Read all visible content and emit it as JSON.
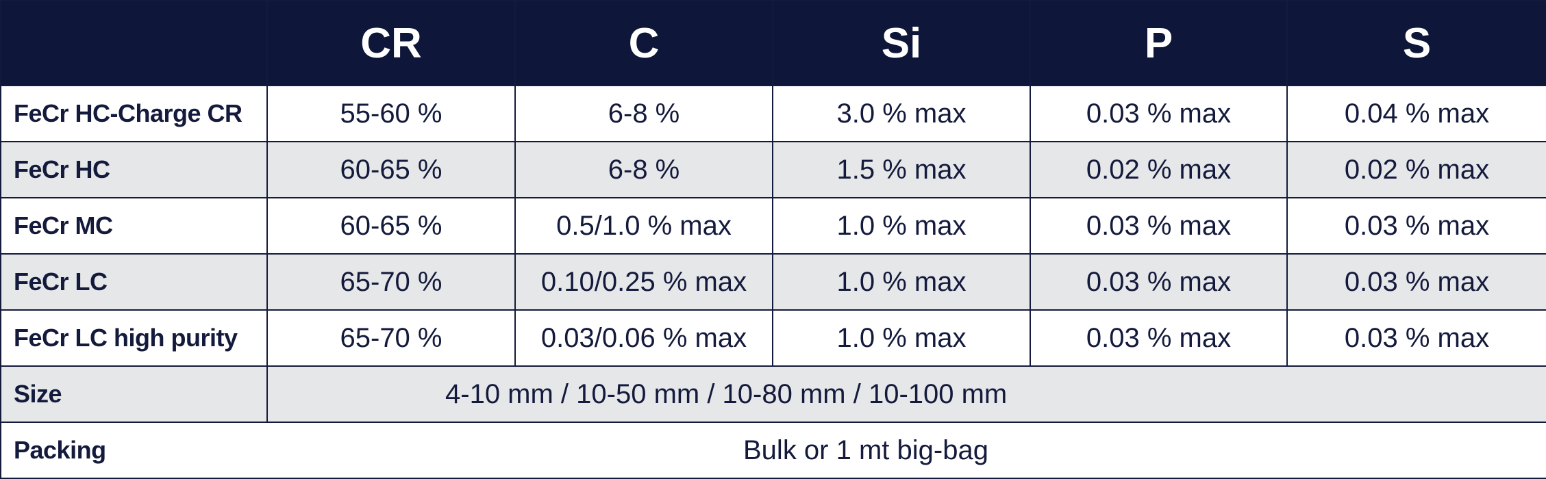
{
  "header": {
    "columns": [
      "CR",
      "C",
      "Si",
      "P",
      "S"
    ]
  },
  "rows": [
    {
      "label": "FeCr HC-Charge CR",
      "values": [
        "55-60 %",
        "6-8 %",
        "3.0 % max",
        "0.03 % max",
        "0.04 % max"
      ]
    },
    {
      "label": "FeCr HC",
      "values": [
        "60-65 %",
        "6-8 %",
        "1.5 % max",
        "0.02 % max",
        "0.02 % max"
      ]
    },
    {
      "label": "FeCr MC",
      "values": [
        "60-65 %",
        "0.5/1.0 % max",
        "1.0 % max",
        "0.03 % max",
        "0.03 % max"
      ]
    },
    {
      "label": "FeCr LC",
      "values": [
        "65-70 %",
        "0.10/0.25 % max",
        "1.0 % max",
        "0.03 % max",
        "0.03 % max"
      ]
    },
    {
      "label": "FeCr LC high purity",
      "values": [
        "65-70 %",
        "0.03/0.06 % max",
        "1.0 % max",
        "0.03 % max",
        "0.03 % max"
      ]
    }
  ],
  "size": {
    "label": "Size",
    "value": "4-10 mm / 10-50 mm / 10-80 mm / 10-100 mm"
  },
  "packing": {
    "label": "Packing",
    "value": "Bulk or 1 mt big-bag"
  }
}
